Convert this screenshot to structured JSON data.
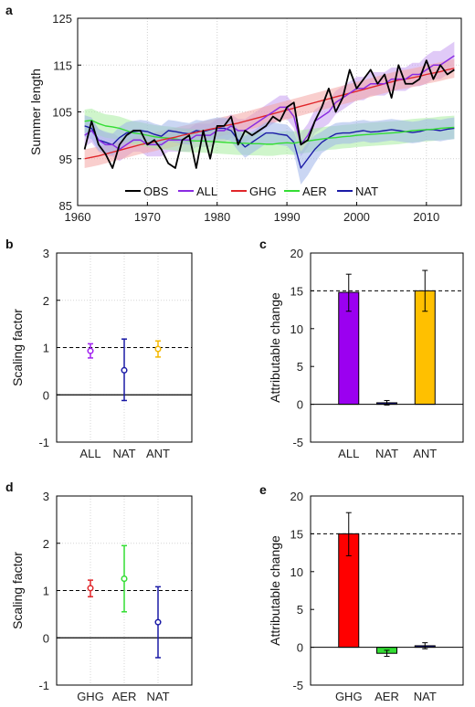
{
  "panels": {
    "a": {
      "label": "a"
    },
    "b": {
      "label": "b"
    },
    "c": {
      "label": "c"
    },
    "d": {
      "label": "d"
    },
    "e": {
      "label": "e"
    }
  },
  "chart_data": [
    {
      "id": "a",
      "type": "line",
      "ylabel": "Summer length",
      "xlim": [
        1960,
        2015
      ],
      "ylim": [
        85,
        125
      ],
      "xticks": [
        1960,
        1970,
        1980,
        1990,
        2000,
        2010
      ],
      "yticks": [
        85,
        95,
        105,
        115,
        125
      ],
      "grid": true,
      "legend_position": "bottom",
      "series": [
        {
          "name": "OBS",
          "color": "#000000",
          "band": false,
          "x": [
            1961,
            1962,
            1963,
            1964,
            1965,
            1966,
            1967,
            1968,
            1969,
            1970,
            1971,
            1972,
            1973,
            1974,
            1975,
            1976,
            1977,
            1978,
            1979,
            1980,
            1981,
            1982,
            1983,
            1984,
            1985,
            1986,
            1987,
            1988,
            1989,
            1990,
            1991,
            1992,
            1993,
            1994,
            1995,
            1996,
            1997,
            1998,
            1999,
            2000,
            2001,
            2002,
            2003,
            2004,
            2005,
            2006,
            2007,
            2008,
            2009,
            2010,
            2011,
            2012,
            2013,
            2014
          ],
          "y": [
            97,
            103,
            98,
            96,
            93,
            98,
            100,
            101,
            101,
            98,
            99,
            97,
            94,
            93,
            99,
            100,
            93,
            101,
            95,
            102,
            102,
            104,
            98,
            101,
            100,
            101,
            102,
            104,
            103,
            106,
            107,
            98,
            99,
            103,
            106,
            110,
            105,
            108,
            114,
            110,
            112,
            114,
            111,
            113,
            108,
            115,
            111,
            111,
            112,
            116,
            112,
            115,
            113,
            114
          ]
        },
        {
          "name": "ALL",
          "color": "#8a2be2",
          "band": true,
          "band_color": "#c79ff0",
          "x": [
            1961,
            1962,
            1963,
            1964,
            1965,
            1966,
            1967,
            1968,
            1969,
            1970,
            1971,
            1972,
            1973,
            1974,
            1975,
            1976,
            1977,
            1978,
            1979,
            1980,
            1981,
            1982,
            1983,
            1984,
            1985,
            1986,
            1987,
            1988,
            1989,
            1990,
            1991,
            1992,
            1993,
            1994,
            1995,
            1996,
            1997,
            1998,
            1999,
            2000,
            2001,
            2002,
            2003,
            2004,
            2005,
            2006,
            2007,
            2008,
            2009,
            2010,
            2011,
            2012,
            2013,
            2014
          ],
          "y": [
            100,
            101,
            99,
            98,
            98,
            97,
            98,
            99,
            99,
            98,
            98,
            98,
            99,
            99,
            99,
            99,
            100,
            100,
            100,
            101,
            101,
            102,
            101,
            101,
            102,
            103,
            104,
            105,
            106,
            106,
            104,
            98,
            100,
            103,
            104,
            105,
            107,
            108,
            109,
            110,
            110,
            111,
            111,
            111,
            112,
            112,
            112,
            113,
            113,
            114,
            115,
            115,
            116,
            117
          ],
          "spread": [
            2.5,
            2.5,
            2.5,
            2.5,
            2.5,
            2.5,
            2.5,
            2.5,
            2.5,
            2.5,
            2.5,
            2.5,
            2.5,
            2.5,
            2.5,
            2.5,
            2.5,
            2.5,
            2.5,
            2.5,
            2.5,
            2.5,
            2.5,
            2.5,
            2.5,
            2.5,
            2.5,
            2.5,
            2.5,
            2.5,
            2.5,
            2.5,
            2.5,
            2.5,
            2.5,
            2.5,
            2.5,
            2.5,
            2.5,
            2.5,
            2.5,
            2.5,
            2.5,
            2.5,
            2.5,
            2.5,
            2.5,
            2.5,
            2.5,
            3,
            3,
            3,
            3,
            3
          ]
        },
        {
          "name": "GHG",
          "color": "#e0262a",
          "band": true,
          "band_color": "#f4a6a4",
          "x": [
            1961,
            1962,
            1963,
            1964,
            1965,
            1966,
            1967,
            1968,
            1969,
            1970,
            1971,
            1972,
            1973,
            1974,
            1975,
            1976,
            1977,
            1978,
            1979,
            1980,
            1981,
            1982,
            1983,
            1984,
            1985,
            1986,
            1987,
            1988,
            1989,
            1990,
            1991,
            1992,
            1993,
            1994,
            1995,
            1996,
            1997,
            1998,
            1999,
            2000,
            2001,
            2002,
            2003,
            2004,
            2005,
            2006,
            2007,
            2008,
            2009,
            2010,
            2011,
            2012,
            2013,
            2014
          ],
          "y": [
            95,
            95.3,
            95.6,
            96,
            96.4,
            96.8,
            97.2,
            97.6,
            98,
            98.3,
            98.6,
            99,
            99.3,
            99.6,
            100,
            100.3,
            100.6,
            101,
            101.3,
            101.6,
            102,
            102.3,
            102.6,
            103,
            103.4,
            103.8,
            104.2,
            104.6,
            105,
            105.4,
            105.8,
            106.2,
            106.6,
            107,
            107.4,
            107.8,
            108.2,
            108.6,
            109,
            109.4,
            109.8,
            110.2,
            110.6,
            111,
            111.4,
            111.8,
            112,
            112.3,
            112.6,
            113,
            113.3,
            113.6,
            114,
            114.3
          ],
          "spread": [
            2,
            2,
            2,
            2,
            2,
            2,
            2,
            2,
            2,
            2,
            2,
            2,
            2,
            2,
            2,
            2,
            2,
            2,
            2,
            2,
            2,
            2,
            2,
            2,
            2,
            2,
            2,
            2,
            2,
            2,
            2,
            2,
            2,
            2,
            2,
            2,
            2,
            2,
            2,
            2,
            2,
            2,
            2,
            2,
            2,
            2,
            2,
            2,
            2,
            2,
            2,
            2,
            2,
            2
          ]
        },
        {
          "name": "AER",
          "color": "#33dd33",
          "band": true,
          "band_color": "#a8eda0",
          "x": [
            1961,
            1962,
            1963,
            1964,
            1965,
            1966,
            1967,
            1968,
            1969,
            1970,
            1971,
            1972,
            1973,
            1974,
            1975,
            1976,
            1977,
            1978,
            1979,
            1980,
            1981,
            1982,
            1983,
            1984,
            1985,
            1986,
            1987,
            1988,
            1989,
            1990,
            1991,
            1992,
            1993,
            1994,
            1995,
            1996,
            1997,
            1998,
            1999,
            2000,
            2001,
            2002,
            2003,
            2004,
            2005,
            2006,
            2007,
            2008,
            2009,
            2010,
            2011,
            2012,
            2013,
            2014
          ],
          "y": [
            103,
            103.2,
            102.5,
            102,
            101.8,
            101.5,
            101,
            100.5,
            100.3,
            100,
            99.7,
            99.5,
            99.4,
            99.2,
            99,
            98.9,
            98.8,
            98.8,
            98.7,
            98.6,
            98.5,
            98.4,
            98.3,
            98.3,
            98.2,
            98.2,
            98.1,
            98.1,
            98.3,
            98.4,
            98.3,
            98.6,
            98.8,
            99,
            99.2,
            99.4,
            99.5,
            99.7,
            99.8,
            100,
            100.1,
            100.2,
            100.3,
            100.4,
            100.5,
            100.6,
            100.8,
            101,
            101.1,
            101.2,
            101.3,
            101.5,
            101.6,
            101.7
          ],
          "spread": [
            2.5,
            2.5,
            2.5,
            2.5,
            2.5,
            2.5,
            2.5,
            2.5,
            2.5,
            2.5,
            2.5,
            2.5,
            2.5,
            2.5,
            2.5,
            2.5,
            2.5,
            2.5,
            2.5,
            2.5,
            2.5,
            2.5,
            2.5,
            2.5,
            2.5,
            2.5,
            2.5,
            2.5,
            2.5,
            2.5,
            2.5,
            2.5,
            2.5,
            2.5,
            2.5,
            2.5,
            2.5,
            2.5,
            2.5,
            2.5,
            2.5,
            2.5,
            2.5,
            2.5,
            2.5,
            2.5,
            2.5,
            2.5,
            2.5,
            2.5,
            2.5,
            2.5,
            2.5,
            2.5
          ]
        },
        {
          "name": "NAT",
          "color": "#1a1aa6",
          "band": true,
          "band_color": "#9fb4ea",
          "x": [
            1961,
            1962,
            1963,
            1964,
            1965,
            1966,
            1967,
            1968,
            1969,
            1970,
            1971,
            1972,
            1973,
            1974,
            1975,
            1976,
            1977,
            1978,
            1979,
            1980,
            1981,
            1982,
            1983,
            1984,
            1985,
            1986,
            1987,
            1988,
            1989,
            1990,
            1991,
            1992,
            1993,
            1994,
            1995,
            1996,
            1997,
            1998,
            1999,
            2000,
            2001,
            2002,
            2003,
            2004,
            2005,
            2006,
            2007,
            2008,
            2009,
            2010,
            2011,
            2012,
            2013,
            2014
          ],
          "y": [
            102,
            101.5,
            99,
            98.5,
            98,
            99.5,
            100.5,
            100.8,
            101,
            100.8,
            100.2,
            99.8,
            101,
            100.8,
            100.5,
            100.3,
            101,
            100.8,
            101.2,
            101.5,
            101.5,
            101,
            99,
            97.5,
            98.5,
            99.5,
            100.5,
            100.5,
            100.2,
            100,
            98.5,
            93,
            95,
            97,
            98.5,
            99.5,
            100.3,
            100.5,
            100.5,
            100.8,
            101,
            100.7,
            100.8,
            101,
            101.2,
            101,
            100.8,
            100.6,
            100.8,
            101.2,
            101.2,
            101,
            101.3,
            101.5
          ],
          "spread": [
            2.3,
            2.3,
            2.3,
            2.3,
            2.3,
            2.3,
            2.3,
            2.3,
            2.3,
            2.3,
            2.3,
            2.3,
            2.3,
            2.3,
            2.3,
            2.3,
            2.3,
            2.3,
            2.3,
            2.3,
            2.3,
            2.3,
            2.3,
            2.3,
            2.3,
            2.3,
            2.3,
            2.3,
            2.3,
            2.3,
            2.3,
            3.5,
            3.5,
            3,
            2.3,
            2.3,
            2.3,
            2.3,
            2.3,
            2.3,
            2.3,
            2.3,
            2.3,
            2.3,
            2.3,
            2.3,
            2.3,
            2.3,
            2.3,
            2.3,
            2.3,
            2.3,
            2.3,
            2.3
          ]
        }
      ]
    },
    {
      "id": "b",
      "type": "scatter",
      "ylabel": "Scaling factor",
      "ylim": [
        -1,
        3
      ],
      "yticks": [
        -1,
        0,
        1,
        2,
        3
      ],
      "reference_line": 1,
      "categories": [
        "ALL",
        "NAT",
        "ANT"
      ],
      "values": [
        0.93,
        0.52,
        0.97
      ],
      "lower": [
        0.78,
        -0.12,
        0.8
      ],
      "upper": [
        1.08,
        1.18,
        1.14
      ],
      "colors": [
        "#a020f0",
        "#1a1aa6",
        "#f5b800"
      ]
    },
    {
      "id": "c",
      "type": "bar",
      "ylabel": "Attributable change",
      "ylim": [
        -5,
        20
      ],
      "yticks": [
        -5,
        0,
        5,
        10,
        15,
        20
      ],
      "reference_line": 15,
      "categories": [
        "ALL",
        "NAT",
        "ANT"
      ],
      "values": [
        14.8,
        0.2,
        15.0
      ],
      "lower": [
        12.3,
        -0.1,
        12.3
      ],
      "upper": [
        17.2,
        0.5,
        17.7
      ],
      "colors": [
        "#9b00f0",
        "#1a1aa6",
        "#ffc000"
      ]
    },
    {
      "id": "d",
      "type": "scatter",
      "ylabel": "Scaling factor",
      "ylim": [
        -1,
        3
      ],
      "yticks": [
        -1,
        0,
        1,
        2,
        3
      ],
      "reference_line": 1,
      "categories": [
        "GHG",
        "AER",
        "NAT"
      ],
      "values": [
        1.05,
        1.25,
        0.33
      ],
      "lower": [
        0.87,
        0.55,
        -0.42
      ],
      "upper": [
        1.22,
        1.95,
        1.08
      ],
      "colors": [
        "#e0262a",
        "#33dd33",
        "#1a1aa6"
      ]
    },
    {
      "id": "e",
      "type": "bar",
      "ylabel": "Attributable change",
      "ylim": [
        -5,
        20
      ],
      "yticks": [
        -5,
        0,
        5,
        10,
        15,
        20
      ],
      "reference_line": 15,
      "categories": [
        "GHG",
        "AER",
        "NAT"
      ],
      "values": [
        15.0,
        -0.8,
        0.2
      ],
      "lower": [
        12.1,
        -1.2,
        -0.2
      ],
      "upper": [
        17.8,
        -0.4,
        0.6
      ],
      "colors": [
        "#ff0000",
        "#33dd33",
        "#1a1aa6"
      ]
    }
  ]
}
